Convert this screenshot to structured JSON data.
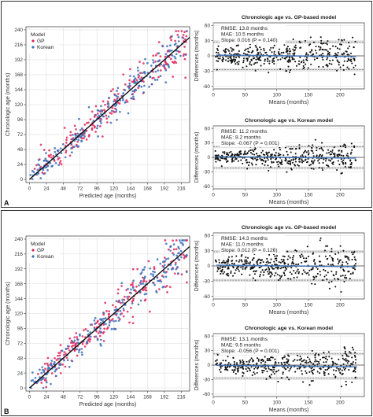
{
  "colors": {
    "gp": "#e0245a",
    "korean": "#3a6fb8",
    "regression": "#111111",
    "bland_mean": "#3a6fb8",
    "bland_limits": "#555555",
    "panel_border": "#000000",
    "band": "#cfcfcf"
  },
  "panels": [
    {
      "letter": "A"
    },
    {
      "letter": "B"
    }
  ],
  "chart_data": [
    {
      "id": "A-scatter",
      "type": "scatter",
      "title": "",
      "xlabel": "Predicted age (months)",
      "ylabel": "Chronologic age (months)",
      "xlim": [
        -5,
        228
      ],
      "ylim": [
        -5,
        245
      ],
      "xticks": [
        "0",
        "24",
        "48",
        "72",
        "96",
        "120",
        "144",
        "168",
        "192",
        "216"
      ],
      "yticks": [
        "0",
        "24",
        "48",
        "72",
        "96",
        "120",
        "144",
        "168",
        "192",
        "216",
        "240"
      ],
      "legend": {
        "title": "Model",
        "position": "top-left",
        "entries": [
          "GP",
          "Korean"
        ]
      },
      "series": [
        {
          "name": "GP",
          "trend": "y = x",
          "approx_n": 220,
          "spread": 13.8,
          "seed": 11
        },
        {
          "name": "Korean",
          "trend": "y = x",
          "approx_n": 220,
          "spread": 11.2,
          "seed": 23
        }
      ],
      "regression_line": {
        "from": [
          0,
          0
        ],
        "to": [
          228,
          228
        ]
      }
    },
    {
      "id": "A-ba-gp",
      "type": "scatter",
      "title": "Chronologic age vs. GP-based model",
      "xlabel": "Means (months)",
      "ylabel": "Differences (months)",
      "xlim": [
        0,
        238
      ],
      "ylim": [
        -65,
        65
      ],
      "xticks": [
        "0",
        "50",
        "100",
        "150",
        "200"
      ],
      "yticks": [
        "60",
        "30",
        "0",
        "-30",
        "-60"
      ],
      "stats": [
        "RMSE: 13.8 months",
        "MAE: 10.5 months",
        "Slope: 0.016 (P = 0.140)"
      ],
      "mean_difference": 0,
      "limits_of_agreement": [
        -27,
        27
      ],
      "approx_n": 400,
      "sd": 13.8,
      "seed": 31
    },
    {
      "id": "A-ba-korean",
      "type": "scatter",
      "title": "Chronologic age vs. Korean model",
      "xlabel": "Means (months)",
      "ylabel": "Differences (months)",
      "xlim": [
        0,
        238
      ],
      "ylim": [
        -65,
        65
      ],
      "xticks": [
        "0",
        "50",
        "100",
        "150",
        "200"
      ],
      "yticks": [
        "60",
        "30",
        "0",
        "-30",
        "-60"
      ],
      "stats": [
        "RMSE: 11.2 months",
        "MAE: 8.2 months",
        "Slope: -0.067 (P = 0.001)"
      ],
      "mean_difference": 0,
      "limits_of_agreement": [
        -22,
        22
      ],
      "approx_n": 400,
      "sd": 11.2,
      "seed": 47
    },
    {
      "id": "B-scatter",
      "type": "scatter",
      "title": "",
      "xlabel": "Predicted age (months)",
      "ylabel": "Chronologic age (months)",
      "xlim": [
        -5,
        228
      ],
      "ylim": [
        -5,
        245
      ],
      "xticks": [
        "0",
        "24",
        "48",
        "72",
        "96",
        "120",
        "144",
        "168",
        "192",
        "216"
      ],
      "yticks": [
        "0",
        "24",
        "48",
        "72",
        "96",
        "120",
        "144",
        "168",
        "192",
        "216",
        "240"
      ],
      "legend": {
        "title": "Model",
        "position": "top-left",
        "entries": [
          "GP",
          "Korean"
        ]
      },
      "series": [
        {
          "name": "GP",
          "trend": "y = x",
          "approx_n": 220,
          "spread": 14.3,
          "seed": 53
        },
        {
          "name": "Korean",
          "trend": "y = x",
          "approx_n": 220,
          "spread": 13.1,
          "seed": 67
        }
      ],
      "regression_line": {
        "from": [
          0,
          0
        ],
        "to": [
          228,
          228
        ]
      }
    },
    {
      "id": "B-ba-gp",
      "type": "scatter",
      "title": "Chronologic age vs. GP-based model",
      "xlabel": "Means (months)",
      "ylabel": "Differences (months)",
      "xlim": [
        0,
        238
      ],
      "ylim": [
        -65,
        65
      ],
      "xticks": [
        "0",
        "50",
        "100",
        "150",
        "200"
      ],
      "yticks": [
        "60",
        "30",
        "0",
        "-30",
        "-60"
      ],
      "stats": [
        "RMSE: 14.3 months",
        "MAE: 11.0 months",
        "Slope: 0.012 (P = 0.126)"
      ],
      "mean_difference": 0,
      "limits_of_agreement": [
        -28,
        28
      ],
      "approx_n": 400,
      "sd": 14.3,
      "seed": 79
    },
    {
      "id": "B-ba-korean",
      "type": "scatter",
      "title": "Chronologic age vs. Korean model",
      "xlabel": "Means (months)",
      "ylabel": "Differences (months)",
      "xlim": [
        0,
        238
      ],
      "ylim": [
        -65,
        65
      ],
      "xticks": [
        "0",
        "50",
        "100",
        "150",
        "200"
      ],
      "yticks": [
        "60",
        "30",
        "0",
        "-30",
        "-60"
      ],
      "stats": [
        "RMSE: 13.1 months",
        "MAE: 9.5 months",
        "Slope: -0.056 (P = 0.001)"
      ],
      "mean_difference": -2,
      "limits_of_agreement": [
        -27,
        23
      ],
      "approx_n": 400,
      "sd": 13.1,
      "seed": 97
    }
  ]
}
